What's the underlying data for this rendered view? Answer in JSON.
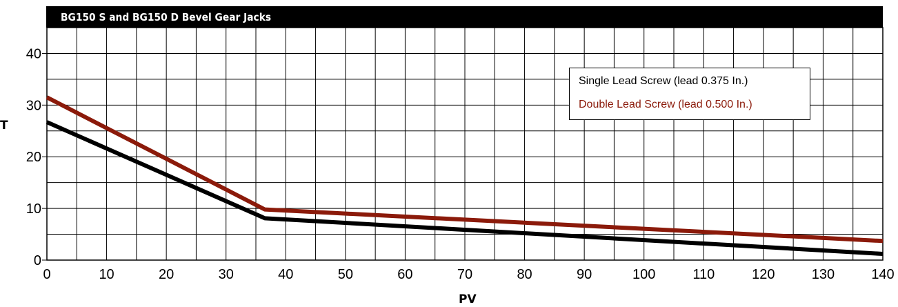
{
  "chart_data": {
    "type": "line",
    "title": "BG150 S and BG150 D Bevel Gear Jacks",
    "xlabel": "PV",
    "ylabel": "T",
    "xlim": [
      0,
      140
    ],
    "ylim": [
      0,
      45
    ],
    "x_ticks": [
      0,
      10,
      20,
      30,
      40,
      50,
      60,
      70,
      80,
      90,
      100,
      110,
      120,
      130,
      140
    ],
    "y_ticks": [
      0,
      10,
      20,
      30,
      40
    ],
    "x_tick_labels": [
      "0",
      "10",
      "20",
      "30",
      "40",
      "50",
      "60",
      "70",
      "80",
      "90",
      "100",
      "110",
      "120",
      "130",
      "140"
    ],
    "y_tick_labels": [
      "0",
      "10",
      "20",
      "30",
      "40"
    ],
    "grid": true,
    "legend_position": "top-right",
    "series": [
      {
        "name": "Single Lead Screw (lead 0.375 In.)",
        "color": "#000000",
        "x": [
          0,
          36.5,
          140
        ],
        "y": [
          26.7,
          8.1,
          1.2
        ]
      },
      {
        "name": "Double Lead Screw (lead 0.500 In.)",
        "color": "#8b1a0a",
        "x": [
          0,
          36.5,
          140
        ],
        "y": [
          31.5,
          9.8,
          3.7
        ]
      }
    ]
  }
}
